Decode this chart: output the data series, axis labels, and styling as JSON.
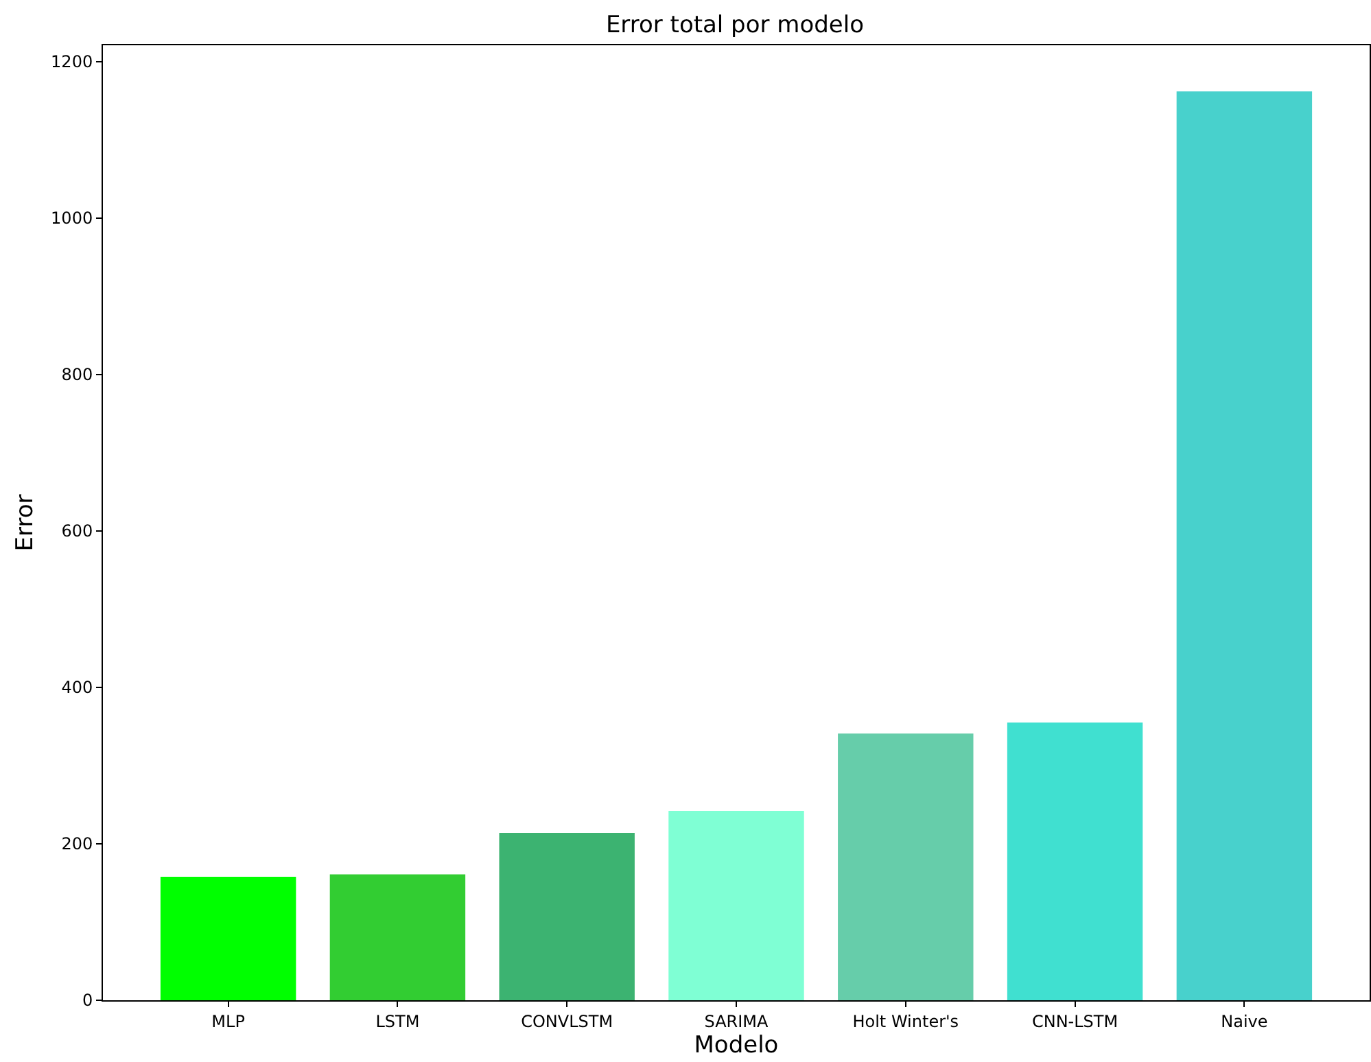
{
  "chart_data": {
    "type": "bar",
    "title": "Error total por modelo",
    "xlabel": "Modelo",
    "ylabel": "Error",
    "categories": [
      "MLP",
      "LSTM",
      "CONVLSTM",
      "SARIMA",
      "Holt Winter's",
      "CNN-LSTM",
      "Naive"
    ],
    "values": [
      158,
      161,
      214,
      242,
      341,
      355,
      1162
    ],
    "colors": [
      "#00ff00",
      "#32cd32",
      "#3cb371",
      "#7fffd4",
      "#66cdaa",
      "#40e0d0",
      "#48d1cc"
    ],
    "ylim": [
      0,
      1221
    ],
    "yticks": [
      0,
      200,
      400,
      600,
      800,
      1000,
      1200
    ],
    "grid": false
  }
}
